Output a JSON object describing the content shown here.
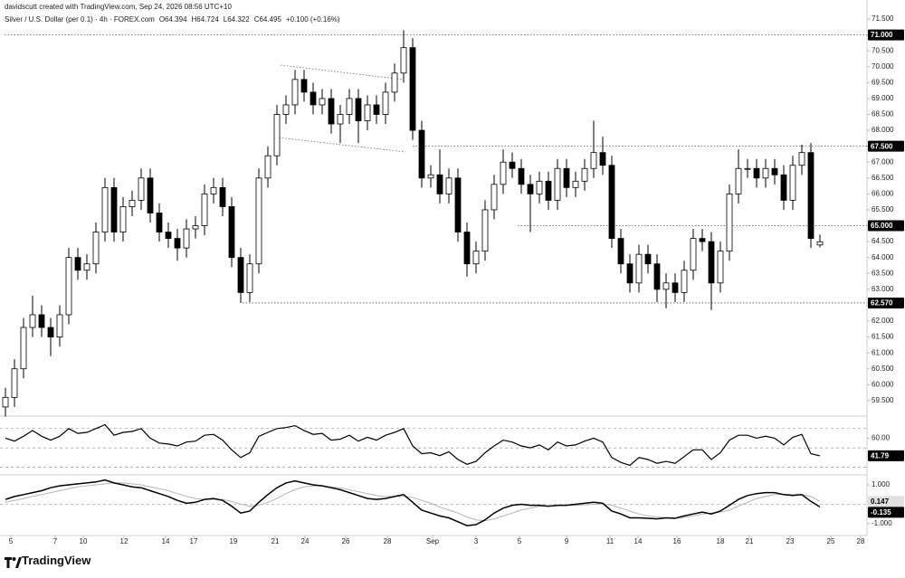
{
  "header": {
    "credit": "davidscutt created with TradingView.com, Sep 24, 2026 08:56 UTC+10",
    "logo": "TradingView"
  },
  "chart_data": [
    {
      "type": "candlestick",
      "title": "Silver / U.S. Dollar (per 0.1) · 4h · FOREX.com",
      "ohlc_labels": [
        "O64.394",
        "H64.724",
        "L64.322",
        "C64.495",
        "+0.100 (+0.16%)"
      ],
      "open": [
        59.3,
        59.6,
        60.5,
        61.8,
        62.2,
        61.8,
        61.5,
        62.2,
        64.0,
        63.6,
        63.8,
        64.8,
        66.2,
        64.8,
        65.6,
        65.8,
        66.5,
        65.4,
        64.8,
        64.6,
        64.3,
        64.9,
        65.0,
        66.0,
        66.2,
        65.6,
        64.0,
        62.9,
        63.8,
        66.5,
        67.2,
        68.5,
        68.8,
        69.6,
        69.2,
        68.8,
        69.0,
        68.2,
        68.5,
        69.0,
        68.3,
        68.8,
        68.5,
        69.2,
        69.8,
        70.6,
        68.0,
        66.5,
        66.6,
        66.0,
        66.5,
        64.8,
        63.8,
        64.2,
        65.5,
        66.3,
        67.0,
        66.8,
        66.3,
        66.0,
        66.4,
        65.8,
        66.8,
        66.2,
        66.4,
        66.8,
        67.3,
        66.9,
        64.6,
        63.8,
        63.2,
        64.1,
        63.8,
        63.0,
        63.2,
        62.9,
        63.6,
        64.6,
        64.5,
        63.2,
        64.2,
        66.0,
        66.8,
        66.8,
        66.5,
        66.8,
        66.6,
        65.8,
        66.9,
        67.3,
        64.394
      ],
      "high": [
        59.9,
        60.8,
        62.1,
        62.8,
        62.5,
        62.1,
        62.5,
        64.3,
        64.3,
        64.1,
        65.1,
        66.5,
        66.5,
        65.9,
        66.1,
        66.8,
        66.8,
        65.7,
        65.1,
        64.9,
        65.2,
        65.3,
        66.3,
        66.5,
        66.5,
        65.9,
        64.3,
        64.1,
        66.8,
        67.5,
        68.8,
        69.1,
        69.9,
        69.9,
        69.5,
        69.3,
        69.3,
        68.8,
        69.3,
        69.3,
        69.1,
        69.1,
        69.5,
        70.1,
        71.15,
        70.9,
        68.3,
        66.9,
        67.4,
        66.8,
        66.8,
        65.1,
        64.5,
        65.8,
        66.6,
        67.4,
        67.3,
        67.1,
        66.6,
        66.7,
        66.7,
        67.1,
        67.1,
        66.7,
        67.1,
        68.3,
        67.8,
        67.2,
        64.9,
        64.1,
        64.4,
        64.4,
        64.1,
        63.5,
        63.5,
        63.9,
        64.9,
        64.9,
        64.8,
        64.5,
        66.3,
        67.4,
        67.1,
        67.1,
        67.1,
        67.1,
        66.9,
        67.2,
        67.55,
        67.6,
        64.724
      ],
      "low": [
        59.0,
        59.3,
        60.2,
        61.5,
        61.5,
        60.9,
        61.2,
        61.9,
        63.3,
        63.3,
        63.5,
        64.5,
        64.5,
        64.5,
        65.3,
        65.5,
        65.1,
        64.5,
        64.3,
        63.9,
        64.0,
        64.6,
        64.7,
        65.7,
        65.3,
        63.7,
        62.57,
        62.6,
        63.5,
        66.2,
        66.9,
        68.2,
        68.5,
        68.9,
        68.5,
        68.5,
        67.9,
        67.6,
        68.2,
        67.6,
        68.0,
        68.2,
        68.2,
        68.9,
        69.5,
        67.7,
        66.2,
        66.2,
        65.7,
        65.7,
        64.5,
        63.4,
        63.5,
        63.9,
        65.2,
        66.0,
        66.5,
        66.0,
        64.8,
        65.7,
        65.5,
        65.5,
        65.9,
        65.9,
        66.1,
        66.5,
        66.6,
        64.3,
        63.5,
        62.9,
        62.9,
        63.5,
        62.6,
        62.4,
        62.6,
        62.6,
        63.3,
        64.2,
        62.35,
        62.9,
        63.9,
        65.7,
        66.5,
        66.2,
        66.2,
        66.3,
        65.5,
        65.5,
        66.6,
        64.3,
        64.322
      ],
      "close": [
        59.6,
        60.5,
        61.8,
        62.2,
        61.8,
        61.5,
        62.2,
        64.0,
        63.6,
        63.8,
        64.8,
        66.2,
        64.8,
        65.6,
        65.8,
        66.5,
        65.4,
        64.8,
        64.6,
        64.3,
        64.9,
        65.0,
        66.0,
        66.2,
        65.6,
        64.0,
        62.9,
        63.8,
        66.5,
        67.2,
        68.5,
        68.8,
        69.6,
        69.2,
        68.8,
        69.0,
        68.2,
        68.5,
        69.0,
        68.3,
        68.8,
        68.5,
        69.2,
        69.8,
        70.6,
        68.0,
        66.5,
        66.6,
        66.0,
        66.5,
        64.8,
        63.8,
        64.2,
        65.5,
        66.3,
        67.0,
        66.8,
        66.3,
        66.0,
        66.4,
        65.8,
        66.8,
        66.2,
        66.4,
        66.8,
        67.3,
        66.9,
        64.6,
        63.8,
        63.2,
        64.1,
        63.8,
        63.0,
        63.2,
        62.9,
        63.6,
        64.6,
        64.5,
        63.2,
        64.2,
        66.0,
        66.8,
        66.8,
        66.5,
        66.8,
        66.6,
        65.8,
        66.9,
        67.3,
        64.6,
        64.495
      ],
      "up_color": "#ffffff",
      "down_color": "#000000",
      "xlim": [
        -0.6,
        95.2
      ],
      "ylim": [
        59.07,
        71.7
      ],
      "yticks": [
        {
          "value": 59.5,
          "label": "59.500"
        },
        {
          "value": 60,
          "label": "60.000"
        },
        {
          "value": 60.5,
          "label": "60.500"
        },
        {
          "value": 61,
          "label": "61.000"
        },
        {
          "value": 61.5,
          "label": "61.500"
        },
        {
          "value": 62,
          "label": "62.000"
        },
        {
          "value": 62.5,
          "label": "62.500"
        },
        {
          "value": 63,
          "label": "63.000"
        },
        {
          "value": 63.5,
          "label": "63.500"
        },
        {
          "value": 64,
          "label": "64.000"
        },
        {
          "value": 64.5,
          "label": "64.500"
        },
        {
          "value": 65,
          "label": "65.000"
        },
        {
          "value": 65.5,
          "label": "65.500"
        },
        {
          "value": 66,
          "label": "66.000"
        },
        {
          "value": 66.5,
          "label": "66.500"
        },
        {
          "value": 67,
          "label": "67.000"
        },
        {
          "value": 67.5,
          "label": "67.500"
        },
        {
          "value": 68,
          "label": "68.000"
        },
        {
          "value": 68.5,
          "label": "68.500"
        },
        {
          "value": 69,
          "label": "69.000"
        },
        {
          "value": 69.5,
          "label": "69.500"
        },
        {
          "value": 70,
          "label": "70.000"
        },
        {
          "value": 70.5,
          "label": "70.500"
        },
        {
          "value": 71,
          "label": "71.000"
        },
        {
          "value": 71.5,
          "label": "71.500"
        }
      ],
      "levels": [
        {
          "value": 71,
          "label": "71.000",
          "start": -0.1
        },
        {
          "value": 67.5,
          "label": "67.500",
          "start": 45.0
        },
        {
          "value": 65,
          "label": "65.000",
          "start": 56.6
        },
        {
          "value": 62.57,
          "label": "62.570",
          "start": 26.2
        }
      ],
      "trendlines": [
        {
          "x": [
            30.4,
            43.9
          ],
          "y": [
            70.05,
            69.6
          ]
        },
        {
          "x": [
            29.9,
            44.2
          ],
          "y": [
            67.78,
            67.32
          ]
        }
      ]
    },
    {
      "type": "line",
      "xlim": [
        -0.6,
        95.2
      ],
      "ylim": [
        23,
        81
      ],
      "yticks": [
        {
          "value": 60,
          "label": "60.00"
        }
      ],
      "bands": [
        70,
        50,
        30
      ],
      "color": "#000000",
      "values": [
        60,
        57,
        62,
        68,
        62,
        58,
        62,
        70,
        65,
        66,
        70,
        74,
        63,
        66,
        67,
        70,
        60,
        55,
        54,
        52,
        56,
        57,
        63,
        64,
        58,
        48,
        40,
        45,
        62,
        66,
        70,
        71,
        73,
        68,
        64,
        65,
        58,
        59,
        63,
        57,
        61,
        58,
        63,
        66,
        70,
        52,
        44,
        45,
        42,
        46,
        38,
        33,
        36,
        45,
        52,
        58,
        56,
        52,
        50,
        53,
        48,
        56,
        52,
        53,
        57,
        60,
        56,
        40,
        35,
        32,
        40,
        38,
        34,
        36,
        34,
        41,
        48,
        48,
        38,
        45,
        58,
        63,
        63,
        60,
        62,
        60,
        53,
        61,
        64,
        44,
        41.79
      ],
      "last_label": "41.79"
    },
    {
      "type": "line",
      "xlim": [
        -0.6,
        95.2
      ],
      "ylim": [
        -1.56,
        1.42
      ],
      "yticks": [
        {
          "value": 1,
          "label": "1.000"
        },
        {
          "value": -1,
          "label": "-1.000"
        }
      ],
      "bands": [
        0
      ],
      "xticks": [
        {
          "value": 0.6,
          "label": "5"
        },
        {
          "value": 5.5,
          "label": "7"
        },
        {
          "value": 8.6,
          "label": "10"
        },
        {
          "value": 13.1,
          "label": "12"
        },
        {
          "value": 17.7,
          "label": "14"
        },
        {
          "value": 20.8,
          "label": "17"
        },
        {
          "value": 25.2,
          "label": "19"
        },
        {
          "value": 29.8,
          "label": "21"
        },
        {
          "value": 33.1,
          "label": "24"
        },
        {
          "value": 37.6,
          "label": "26"
        },
        {
          "value": 42.2,
          "label": "28"
        },
        {
          "value": 47.2,
          "label": "Sep"
        },
        {
          "value": 52.0,
          "label": "3"
        },
        {
          "value": 56.8,
          "label": "5"
        },
        {
          "value": 62.0,
          "label": "9"
        },
        {
          "value": 66.8,
          "label": "11"
        },
        {
          "value": 69.9,
          "label": "14"
        },
        {
          "value": 74.2,
          "label": "16"
        },
        {
          "value": 79.0,
          "label": "18"
        },
        {
          "value": 82.2,
          "label": "21"
        },
        {
          "value": 86.7,
          "label": "23"
        },
        {
          "value": 91.2,
          "label": "25"
        },
        {
          "value": 94.5,
          "label": "28"
        }
      ],
      "series": [
        {
          "color": "#b5b5b5",
          "label_color": "#e0e0e0",
          "last_label": "0.147",
          "values": [
            0.1,
            0.2,
            0.3,
            0.4,
            0.5,
            0.6,
            0.7,
            0.8,
            0.9,
            0.95,
            1.0,
            1.05,
            1.1,
            1.1,
            1.05,
            1.0,
            0.9,
            0.8,
            0.7,
            0.55,
            0.4,
            0.3,
            0.25,
            0.25,
            0.25,
            0.15,
            0.0,
            -0.1,
            -0.05,
            0.1,
            0.3,
            0.55,
            0.75,
            0.9,
            0.95,
            0.95,
            0.9,
            0.85,
            0.75,
            0.65,
            0.55,
            0.45,
            0.4,
            0.4,
            0.4,
            0.35,
            0.2,
            0.05,
            -0.15,
            -0.3,
            -0.45,
            -0.65,
            -0.8,
            -0.85,
            -0.75,
            -0.6,
            -0.45,
            -0.3,
            -0.2,
            -0.1,
            -0.1,
            -0.08,
            -0.06,
            -0.05,
            -0.03,
            0.0,
            0.02,
            -0.05,
            -0.2,
            -0.35,
            -0.5,
            -0.6,
            -0.65,
            -0.7,
            -0.7,
            -0.68,
            -0.6,
            -0.5,
            -0.45,
            -0.4,
            -0.3,
            -0.1,
            0.1,
            0.3,
            0.4,
            0.5,
            0.5,
            0.5,
            0.5,
            0.4,
            0.147
          ]
        },
        {
          "color": "#000000",
          "label_color": "#000000",
          "last_label": "-0.135",
          "values": [
            0.25,
            0.4,
            0.5,
            0.6,
            0.7,
            0.85,
            0.95,
            1.0,
            1.05,
            1.1,
            1.15,
            1.25,
            1.1,
            1.0,
            0.9,
            0.85,
            0.7,
            0.55,
            0.4,
            0.2,
            0.05,
            0.1,
            0.25,
            0.3,
            0.2,
            -0.1,
            -0.45,
            -0.35,
            0.1,
            0.5,
            0.85,
            1.1,
            1.2,
            1.1,
            1.0,
            0.95,
            0.85,
            0.75,
            0.6,
            0.45,
            0.3,
            0.25,
            0.3,
            0.4,
            0.5,
            0.1,
            -0.3,
            -0.45,
            -0.6,
            -0.7,
            -0.9,
            -1.1,
            -1.05,
            -0.8,
            -0.45,
            -0.2,
            -0.05,
            0.0,
            -0.05,
            -0.05,
            -0.1,
            -0.05,
            -0.05,
            0.0,
            0.05,
            0.1,
            0.05,
            -0.35,
            -0.5,
            -0.7,
            -0.7,
            -0.72,
            -0.75,
            -0.7,
            -0.72,
            -0.6,
            -0.5,
            -0.4,
            -0.5,
            -0.35,
            -0.05,
            0.25,
            0.45,
            0.55,
            0.6,
            0.6,
            0.5,
            0.45,
            0.5,
            0.15,
            -0.135
          ]
        }
      ]
    }
  ]
}
